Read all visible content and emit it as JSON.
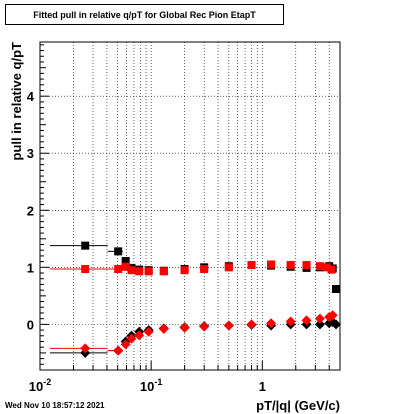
{
  "chart_data": {
    "type": "scatter",
    "title": "Fitted pull in relative q/pT for Global Rec Pion EtapT",
    "xlabel": "pT/|q| (GeV/c)",
    "ylabel": "pull in relative q/pT",
    "x_scale": "log",
    "xlim": [
      0.01,
      5.0
    ],
    "ylim": [
      -0.8,
      4.95
    ],
    "grid": true,
    "x_ticks": [
      {
        "value": 0.01,
        "base": "10",
        "exp": "-2"
      },
      {
        "value": 0.1,
        "base": "10",
        "exp": "-1"
      },
      {
        "value": 1,
        "base": "1",
        "exp": ""
      }
    ],
    "y_ticks": [
      "0",
      "1",
      "2",
      "3",
      "4"
    ],
    "series": [
      {
        "color": "#000000",
        "marker": "square",
        "x_err": [
          [
            0.0123,
            0.0406
          ],
          [
            0.0406,
            0.0556
          ],
          [
            0.0556,
            0.0627
          ],
          [
            0.0627,
            0.0727
          ],
          [
            0.0727,
            0.085
          ]
        ],
        "points": [
          [
            0.0255,
            1.38
          ],
          [
            0.0505,
            1.28
          ],
          [
            0.059,
            1.11
          ],
          [
            0.0665,
            0.99
          ],
          [
            0.078,
            0.96
          ],
          [
            0.095,
            0.95
          ],
          [
            0.13,
            0.94
          ],
          [
            0.2,
            0.97
          ],
          [
            0.3,
            1.0
          ],
          [
            0.5,
            1.02
          ],
          [
            0.8,
            1.04
          ],
          [
            1.2,
            1.03
          ],
          [
            1.8,
            1.01
          ],
          [
            2.5,
            0.99
          ],
          [
            3.3,
            1.0
          ],
          [
            4.0,
            1.02
          ],
          [
            4.3,
            0.98
          ],
          [
            4.6,
            0.62
          ]
        ]
      },
      {
        "color": "#000000",
        "marker": "diamond",
        "x_err": [
          [
            0.0123,
            0.0406
          ],
          [
            0.0406,
            0.0556
          ]
        ],
        "points": [
          [
            0.0255,
            -0.5
          ],
          [
            0.0505,
            -0.46
          ],
          [
            0.059,
            -0.3
          ],
          [
            0.0665,
            -0.2
          ],
          [
            0.078,
            -0.13
          ],
          [
            0.095,
            -0.1
          ],
          [
            0.13,
            -0.07
          ],
          [
            0.2,
            -0.05
          ],
          [
            0.3,
            -0.03
          ],
          [
            0.5,
            -0.02
          ],
          [
            0.8,
            -0.01
          ],
          [
            1.2,
            -0.02
          ],
          [
            1.8,
            0.0
          ],
          [
            2.5,
            0.0
          ],
          [
            3.3,
            0.0
          ],
          [
            4.0,
            0.02
          ],
          [
            4.3,
            0.04
          ],
          [
            4.6,
            0.0
          ]
        ]
      },
      {
        "color": "#ff0000",
        "marker": "square",
        "x_err": [
          [
            0.0123,
            0.0406
          ],
          [
            0.0406,
            0.0556
          ]
        ],
        "points": [
          [
            0.0255,
            0.97
          ],
          [
            0.0505,
            0.97
          ],
          [
            0.059,
            1.01
          ],
          [
            0.0665,
            0.95
          ],
          [
            0.078,
            0.93
          ],
          [
            0.095,
            0.93
          ],
          [
            0.13,
            0.93
          ],
          [
            0.2,
            0.95
          ],
          [
            0.3,
            0.97
          ],
          [
            0.5,
            1.0
          ],
          [
            0.8,
            1.04
          ],
          [
            1.2,
            1.05
          ],
          [
            1.8,
            1.04
          ],
          [
            2.5,
            1.04
          ],
          [
            3.3,
            1.02
          ],
          [
            3.8,
            1.0
          ],
          [
            4.2,
            0.96
          ]
        ]
      },
      {
        "color": "#ff0000",
        "marker": "diamond",
        "x_err": [
          [
            0.0123,
            0.0406
          ],
          [
            0.0406,
            0.0556
          ]
        ],
        "points": [
          [
            0.0255,
            -0.42
          ],
          [
            0.0505,
            -0.46
          ],
          [
            0.059,
            -0.35
          ],
          [
            0.0665,
            -0.25
          ],
          [
            0.078,
            -0.19
          ],
          [
            0.095,
            -0.13
          ],
          [
            0.13,
            -0.08
          ],
          [
            0.2,
            -0.06
          ],
          [
            0.3,
            -0.04
          ],
          [
            0.5,
            -0.02
          ],
          [
            0.8,
            0.0
          ],
          [
            1.2,
            0.02
          ],
          [
            1.8,
            0.05
          ],
          [
            2.5,
            0.07
          ],
          [
            3.3,
            0.1
          ],
          [
            4.0,
            0.13
          ],
          [
            4.3,
            0.16
          ]
        ]
      }
    ]
  },
  "timestamp": "Wed Nov 10 18:57:12 2021"
}
